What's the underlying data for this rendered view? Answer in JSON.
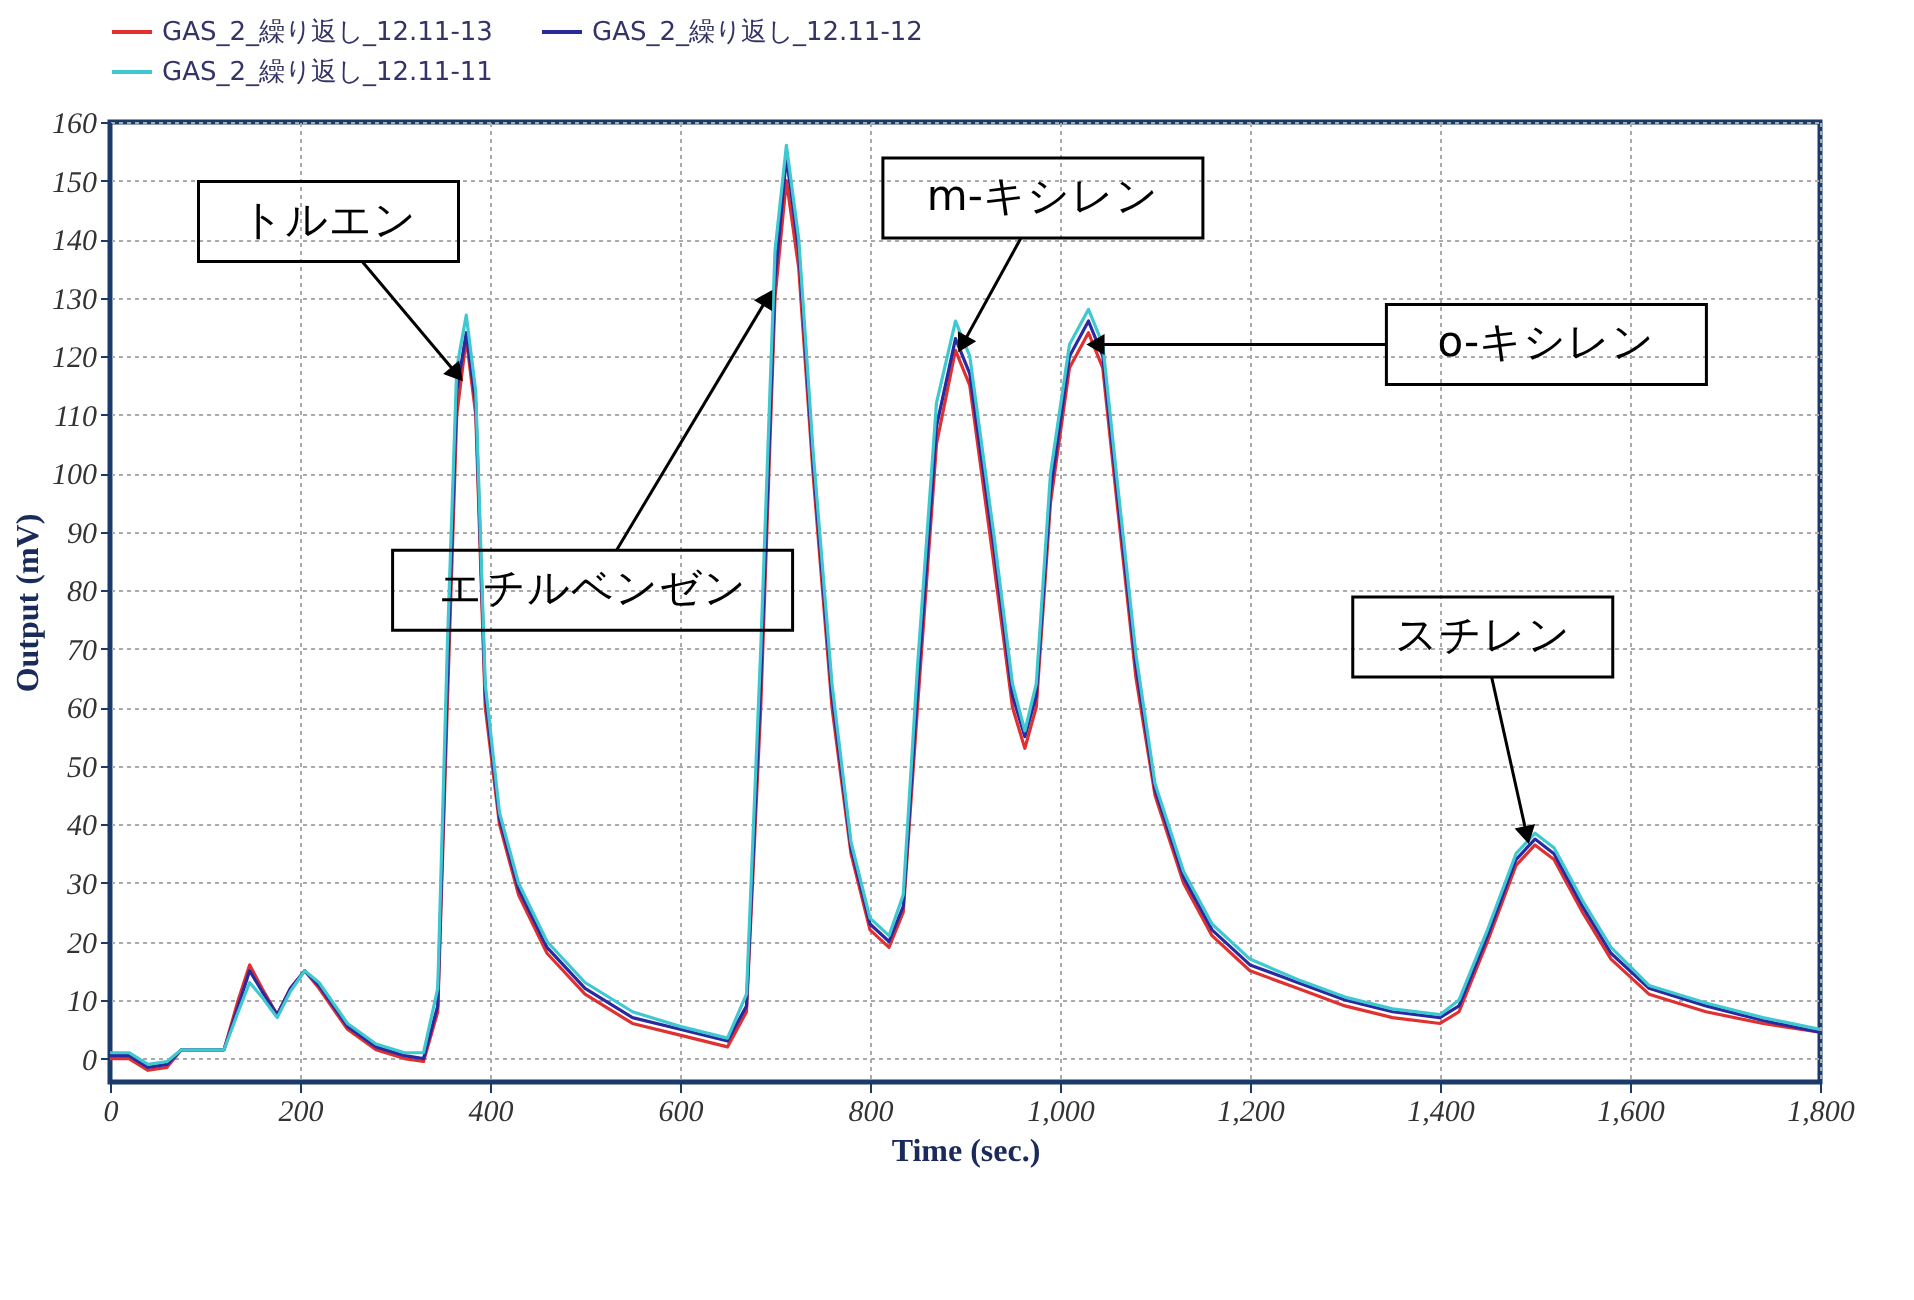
{
  "chart_data": {
    "type": "line",
    "xlabel": "Time (sec.)",
    "ylabel": "Output (mV)",
    "x": [
      0,
      20,
      40,
      60,
      75,
      120,
      135,
      147,
      160,
      176,
      190,
      205,
      220,
      250,
      280,
      310,
      330,
      345,
      355,
      365,
      375,
      385,
      395,
      410,
      430,
      460,
      500,
      550,
      600,
      650,
      670,
      685,
      700,
      712,
      725,
      740,
      760,
      780,
      800,
      820,
      835,
      850,
      870,
      890,
      905,
      930,
      950,
      963,
      975,
      990,
      1010,
      1030,
      1045,
      1060,
      1080,
      1100,
      1130,
      1160,
      1200,
      1250,
      1300,
      1350,
      1400,
      1420,
      1450,
      1480,
      1500,
      1520,
      1550,
      1580,
      1620,
      1680,
      1740,
      1800
    ],
    "series": [
      {
        "name": "GAS_2_繰り返し_12.11-13",
        "color": "#e03030",
        "values": [
          0,
          0,
          -2,
          -1.5,
          1.5,
          1.5,
          10,
          16,
          12,
          7.5,
          12,
          15,
          12,
          5,
          1.5,
          0,
          -0.5,
          8,
          60,
          110,
          123,
          110,
          60,
          40,
          28,
          18,
          11,
          6,
          4,
          2,
          8,
          60,
          130,
          150,
          135,
          100,
          60,
          35,
          22,
          19,
          25,
          60,
          105,
          121,
          115,
          85,
          60,
          53,
          60,
          95,
          118,
          124,
          118,
          95,
          65,
          45,
          30,
          21,
          15,
          12,
          9,
          7,
          6,
          8,
          20,
          33,
          36.5,
          34,
          25,
          17,
          11,
          8,
          6,
          4.5
        ]
      },
      {
        "name": "GAS_2_繰り返し_12.11-12",
        "color": "#2a2aa0",
        "values": [
          0.5,
          0.5,
          -1.5,
          -1,
          1.5,
          1.5,
          9,
          15,
          11.5,
          7.5,
          12,
          15,
          12.5,
          5.5,
          2,
          0.5,
          0,
          9,
          64,
          114,
          124,
          112,
          62,
          41,
          29,
          19,
          12,
          7,
          5,
          3,
          9,
          64,
          133,
          154,
          138,
          102,
          62,
          36,
          23,
          20,
          26,
          63,
          108,
          123,
          117,
          88,
          62,
          55,
          62,
          97,
          120,
          126,
          120,
          97,
          67,
          46,
          31,
          22,
          16,
          13,
          10,
          8,
          7,
          9,
          21,
          34,
          37.5,
          35,
          26,
          18,
          12,
          9,
          6.5,
          4.5
        ]
      },
      {
        "name": "GAS_2_繰り返し_12.11-11",
        "color": "#40c8d0",
        "values": [
          1,
          1,
          -1,
          -0.5,
          1.5,
          1.5,
          8,
          13,
          10.5,
          7,
          11.5,
          15,
          13,
          6,
          2.5,
          1,
          1,
          12,
          70,
          118,
          127,
          114,
          64,
          42,
          30,
          20,
          13,
          8,
          5.5,
          3.5,
          11,
          70,
          138,
          156,
          140,
          104,
          64,
          37,
          24,
          21,
          28,
          67,
          112,
          126,
          120,
          90,
          64,
          56,
          64,
          100,
          122,
          128,
          122,
          99,
          69,
          47,
          32,
          23,
          17,
          13.5,
          10.5,
          8.5,
          7.5,
          10,
          22,
          35,
          38.5,
          36,
          27,
          19,
          12.5,
          9.5,
          7,
          5
        ]
      }
    ],
    "annotations": [
      {
        "text": "トルエン",
        "x": 370,
        "y": 116
      },
      {
        "text": "エチルベンゼン",
        "x": 696,
        "y": 131
      },
      {
        "text": "m-キシレン",
        "x": 894,
        "y": 121
      },
      {
        "text": "o-キシレン",
        "x": 1030,
        "y": 122
      },
      {
        "text": "スチレン",
        "x": 1493,
        "y": 37
      }
    ],
    "xlim": [
      0,
      1800
    ],
    "xticks": [
      0,
      200,
      400,
      600,
      800,
      {
        "value": 1000,
        "label": "1,000"
      },
      {
        "value": 1200,
        "label": "1,200"
      },
      {
        "value": 1400,
        "label": "1,400"
      },
      {
        "value": 1600,
        "label": "1,600"
      },
      {
        "value": 1800,
        "label": "1,800"
      }
    ],
    "ylim": [
      -4,
      160
    ],
    "yticks": [
      0,
      10,
      20,
      30,
      40,
      50,
      60,
      70,
      80,
      90,
      100,
      110,
      120,
      130,
      140,
      150,
      160
    ],
    "grid": true,
    "legend": "top",
    "line_style": "solid",
    "marker": "none"
  }
}
